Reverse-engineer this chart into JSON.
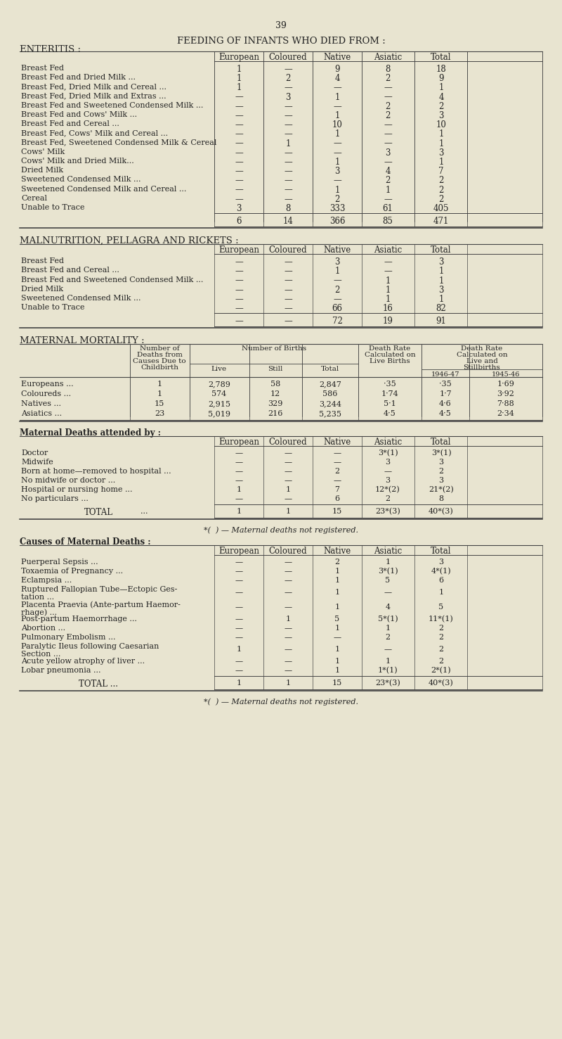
{
  "page_number": "39",
  "bg_color": "#e8e4d0",
  "text_color": "#222222",
  "main_title": "FEEDING OF INFANTS WHO DIED FROM :",
  "section1_title": "ENTERITIS :",
  "enteritis_headers": [
    "European",
    "Coloured",
    "Native",
    "Asiatic",
    "Total"
  ],
  "enteritis_rows": [
    [
      "Breast Fed",
      "1",
      "—",
      "9",
      "8",
      "18"
    ],
    [
      "Breast Fed and Dried Milk ...",
      "1",
      "2",
      "4",
      "2",
      "9"
    ],
    [
      "Breast Fed, Dried Milk and Cereal ...",
      "1",
      "—",
      "—",
      "—",
      "1"
    ],
    [
      "Breast Fed, Dried Milk and Extras ...",
      "—",
      "3",
      "1",
      "—",
      "4"
    ],
    [
      "Breast Fed and Sweetened Condensed Milk ...",
      "—",
      "—",
      "—",
      "2",
      "2"
    ],
    [
      "Breast Fed and Cows' Milk ...",
      "—",
      "—",
      "1",
      "2",
      "3"
    ],
    [
      "Breast Fed and Cereal ...",
      "—",
      "—",
      "10",
      "—",
      "10"
    ],
    [
      "Breast Fed, Cows' Milk and Cereal ...",
      "—",
      "—",
      "1",
      "—",
      "1"
    ],
    [
      "Breast Fed, Sweetened Condensed Milk & Cereal",
      "—",
      "1",
      "—",
      "—",
      "1"
    ],
    [
      "Cows' Milk",
      "—",
      "—",
      "—",
      "3",
      "3"
    ],
    [
      "Cows' Milk and Dried Milk...",
      "—",
      "—",
      "1",
      "—",
      "1"
    ],
    [
      "Dried Milk",
      "—",
      "—",
      "3",
      "4",
      "7"
    ],
    [
      "Sweetened Condensed Milk ...",
      "—",
      "—",
      "—",
      "2",
      "2"
    ],
    [
      "Sweetened Condensed Milk and Cereal ...",
      "—",
      "—",
      "1",
      "1",
      "2"
    ],
    [
      "Cereal",
      "—",
      "—",
      "2",
      "—",
      "2"
    ],
    [
      "Unable to Trace",
      "3",
      "8",
      "333",
      "61",
      "405"
    ]
  ],
  "enteritis_total": [
    "6",
    "14",
    "366",
    "85",
    "471"
  ],
  "section2_title": "MALNUTRITION, PELLAGRA AND RICKETS :",
  "malnut_headers": [
    "European",
    "Coloured",
    "Native",
    "Asiatic",
    "Total"
  ],
  "malnut_rows": [
    [
      "Breast Fed",
      "—",
      "—",
      "3",
      "—",
      "3"
    ],
    [
      "Breast Fed and Cereal ...",
      "—",
      "—",
      "1",
      "—",
      "1"
    ],
    [
      "Breast Fed and Sweetened Condensed Milk ...",
      "—",
      "—",
      "—",
      "1",
      "1"
    ],
    [
      "Dried Milk",
      "—",
      "—",
      "2",
      "1",
      "3"
    ],
    [
      "Sweetened Condensed Milk ...",
      "—",
      "—",
      "—",
      "1",
      "1"
    ],
    [
      "Unable to Trace",
      "—",
      "—",
      "66",
      "16",
      "82"
    ]
  ],
  "malnut_total": [
    "—",
    "—",
    "72",
    "19",
    "91"
  ],
  "section3_title": "MATERNAL MORTALITY :",
  "maternal_mort_rows": [
    [
      "Europeans ...",
      "1",
      "2,789",
      "58",
      "2,847",
      "·35",
      "·35",
      "1·69"
    ],
    [
      "Coloureds ...",
      "1",
      "574",
      "12",
      "586",
      "1·74",
      "1·7",
      "3·92"
    ],
    [
      "Natives ...",
      "15",
      "2,915",
      "329",
      "3,244",
      "5·1",
      "4·6",
      "7·88"
    ],
    [
      "Asiatics ...",
      "23",
      "5,019",
      "216",
      "5,235",
      "4·5",
      "4·5",
      "2·34"
    ]
  ],
  "section4_title": "Maternal Deaths attended by :",
  "attended_headers": [
    "European",
    "Coloured",
    "Native",
    "Asiatic",
    "Total"
  ],
  "attended_rows": [
    [
      "Doctor",
      "—",
      "—",
      "—",
      "3*(1)",
      "3*(1)"
    ],
    [
      "Midwife",
      "—",
      "—",
      "—",
      "3",
      "3"
    ],
    [
      "Born at home—removed to hospital ...",
      "—",
      "—",
      "2",
      "—",
      "2"
    ],
    [
      "No midwife or doctor ...",
      "—",
      "—",
      "—",
      "3",
      "3"
    ],
    [
      "Hospital or nursing home ...",
      "1",
      "1",
      "7",
      "12*(2)",
      "21*(2)"
    ],
    [
      "No particulars ...",
      "—",
      "—",
      "6",
      "2",
      "8"
    ]
  ],
  "attended_total": [
    "1",
    "1",
    "15",
    "23*(3)",
    "40*(3)"
  ],
  "attended_footnote": "*(  ) — Maternal deaths not registered.",
  "section5_title": "Causes of Maternal Deaths :",
  "causes_headers": [
    "European",
    "Coloured",
    "Native",
    "Asiatic",
    "Total"
  ],
  "causes_rows": [
    [
      "Puerperal Sepsis ...",
      "—",
      "—",
      "2",
      "1",
      "3"
    ],
    [
      "Toxaemia of Pregnancy ...",
      "—",
      "—",
      "1",
      "3*(1)",
      "4*(1)"
    ],
    [
      "Eclampsia ...",
      "—",
      "—",
      "1",
      "5",
      "6"
    ],
    [
      "Ruptured Fallopian Tube—Ectopic Ges-\n    tation ...",
      "—",
      "—",
      "1",
      "—",
      "1"
    ],
    [
      "Placenta Praevia (Ante-partum Haemor-\n    rhage) ...",
      "—",
      "—",
      "1",
      "4",
      "5"
    ],
    [
      "Post-partum Haemorrhage ...",
      "—",
      "1",
      "5",
      "5*(1)",
      "11*(1)"
    ],
    [
      "Abortion ...",
      "—",
      "—",
      "1",
      "1",
      "2"
    ],
    [
      "Pulmonary Embolism ...",
      "—",
      "—",
      "—",
      "2",
      "2"
    ],
    [
      "Paralytic Ileus following Caesarian\n    Section ...",
      "1",
      "—",
      "1",
      "—",
      "2"
    ],
    [
      "Acute yellow atrophy of liver ...",
      "—",
      "—",
      "1",
      "1",
      "2"
    ],
    [
      "Lobar pneumonia ...",
      "—",
      "—",
      "1",
      "1*(1)",
      "2*(1)"
    ]
  ],
  "causes_total": [
    "1",
    "1",
    "15",
    "23*(3)",
    "40*(3)"
  ],
  "causes_footnote": "*(  ) — Maternal deaths not registered."
}
